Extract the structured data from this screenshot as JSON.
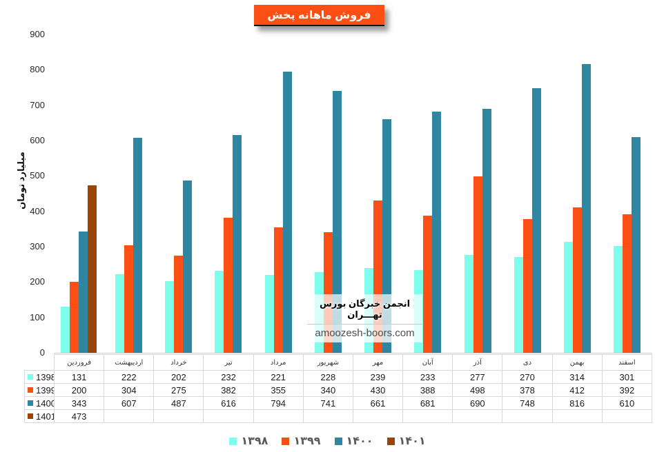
{
  "chart_data": {
    "type": "bar",
    "title": "فروش ماهانه پخش",
    "xlabel": "",
    "ylabel": "میلیارد تومان",
    "ylim": [
      0,
      900
    ],
    "ytick_step": 100,
    "grid": false,
    "legend_position": "bottom",
    "categories": [
      "فروردین",
      "اردیبهشت",
      "خرداد",
      "تیر",
      "مرداد",
      "شهریور",
      "مهر",
      "آبان",
      "آذر",
      "دی",
      "بهمن",
      "اسفند"
    ],
    "series": [
      {
        "name": "1398",
        "legend_label": "۱۳۹۸",
        "color": "#7DFFEC",
        "values": [
          131,
          222,
          202,
          232,
          221,
          228,
          239,
          233,
          277,
          270,
          314,
          301
        ]
      },
      {
        "name": "1399",
        "legend_label": "۱۳۹۹",
        "color": "#FB4F14",
        "values": [
          200,
          304,
          275,
          382,
          355,
          340,
          430,
          388,
          498,
          378,
          412,
          392
        ]
      },
      {
        "name": "1400",
        "legend_label": "۱۴۰۰",
        "color": "#2E86A0",
        "values": [
          343,
          607,
          487,
          616,
          794,
          741,
          661,
          681,
          690,
          748,
          816,
          610
        ]
      },
      {
        "name": "1401",
        "legend_label": "۱۴۰۱",
        "color": "#9C450B",
        "values": [
          473,
          null,
          null,
          null,
          null,
          null,
          null,
          null,
          null,
          null,
          null,
          null
        ]
      }
    ]
  },
  "watermark": {
    "line1": "انجمن خبرگان بورس تهـــران",
    "line2": "amoozesh-boors.com"
  },
  "colors": {
    "title_bg": "#FB4F14",
    "title_text": "#FFFFFF",
    "legend_text": "#595959",
    "table_border": "#D9D9D9"
  }
}
